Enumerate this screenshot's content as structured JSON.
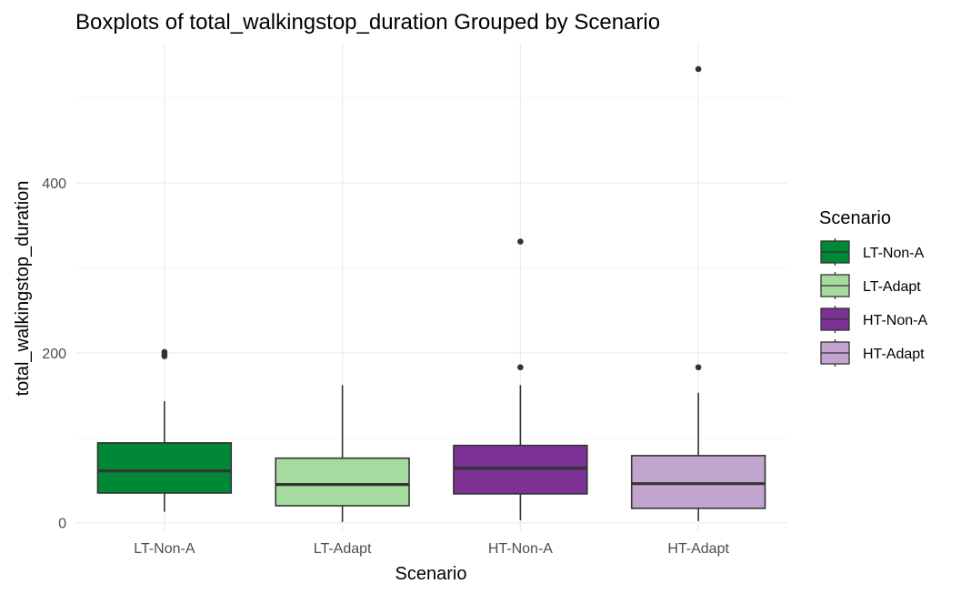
{
  "chart_data": {
    "type": "boxplot",
    "title": "Boxplots of total_walkingstop_duration Grouped by Scenario",
    "xlabel": "Scenario",
    "ylabel": "total_walkingstop_duration",
    "ylim": [
      -10,
      565
    ],
    "yticks": [
      0,
      200,
      400
    ],
    "grid": true,
    "legend": {
      "title": "Scenario",
      "position": "right"
    },
    "categories": [
      "LT-Non-A",
      "LT-Adapt",
      "HT-Non-A",
      "HT-Adapt"
    ],
    "series": [
      {
        "name": "LT-Non-A",
        "color": "#008837",
        "whisker_low": 13,
        "q1": 35,
        "median": 61,
        "q3": 94,
        "whisker_high": 143,
        "outliers": [
          196,
          198,
          201
        ]
      },
      {
        "name": "LT-Adapt",
        "color": "#a6dba0",
        "whisker_low": 1,
        "q1": 20,
        "median": 45,
        "q3": 76,
        "whisker_high": 162,
        "outliers": []
      },
      {
        "name": "HT-Non-A",
        "color": "#7b3294",
        "whisker_low": 3,
        "q1": 34,
        "median": 64,
        "q3": 91,
        "whisker_high": 162,
        "outliers": [
          183,
          331
        ]
      },
      {
        "name": "HT-Adapt",
        "color": "#c2a5cf",
        "whisker_low": 2,
        "q1": 17,
        "median": 46,
        "q3": 79,
        "whisker_high": 153,
        "outliers": [
          183,
          534
        ]
      }
    ]
  }
}
